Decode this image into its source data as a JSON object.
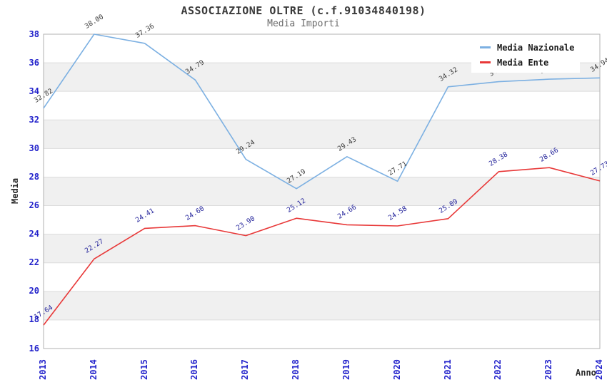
{
  "header": {
    "title": "ASSOCIAZIONE OLTRE (c.f.91034840198)",
    "subtitle": "Media Importi"
  },
  "chart_data": {
    "type": "line",
    "title": "ASSOCIAZIONE OLTRE (c.f.91034840198)",
    "subtitle": "Media Importi",
    "xlabel": "Anno",
    "ylabel": "Media",
    "ylim": [
      16,
      38
    ],
    "y_tick_step": 2,
    "grid": true,
    "band_color": "#f0f0f0",
    "gridline_color": "#dcdcdc",
    "axis_label_color": "#2323cb",
    "legend_position": "top-right",
    "x": [
      "2013",
      "2014",
      "2015",
      "2016",
      "2017",
      "2018",
      "2019",
      "2020",
      "2021",
      "2022",
      "2023",
      "2024"
    ],
    "series": [
      {
        "name": "Media Nazionale",
        "color": "#7cb0e2",
        "label_color": "#3c3c3c",
        "values": [
          32.82,
          38.0,
          37.36,
          34.79,
          29.24,
          27.19,
          29.43,
          27.71,
          34.32,
          34.68,
          34.85,
          34.94
        ]
      },
      {
        "name": "Media Ente",
        "color": "#e83838",
        "label_color": "#24249b",
        "values": [
          17.64,
          22.27,
          24.41,
          24.6,
          23.9,
          25.12,
          24.66,
          24.58,
          25.09,
          28.38,
          28.66,
          27.73
        ]
      }
    ]
  }
}
